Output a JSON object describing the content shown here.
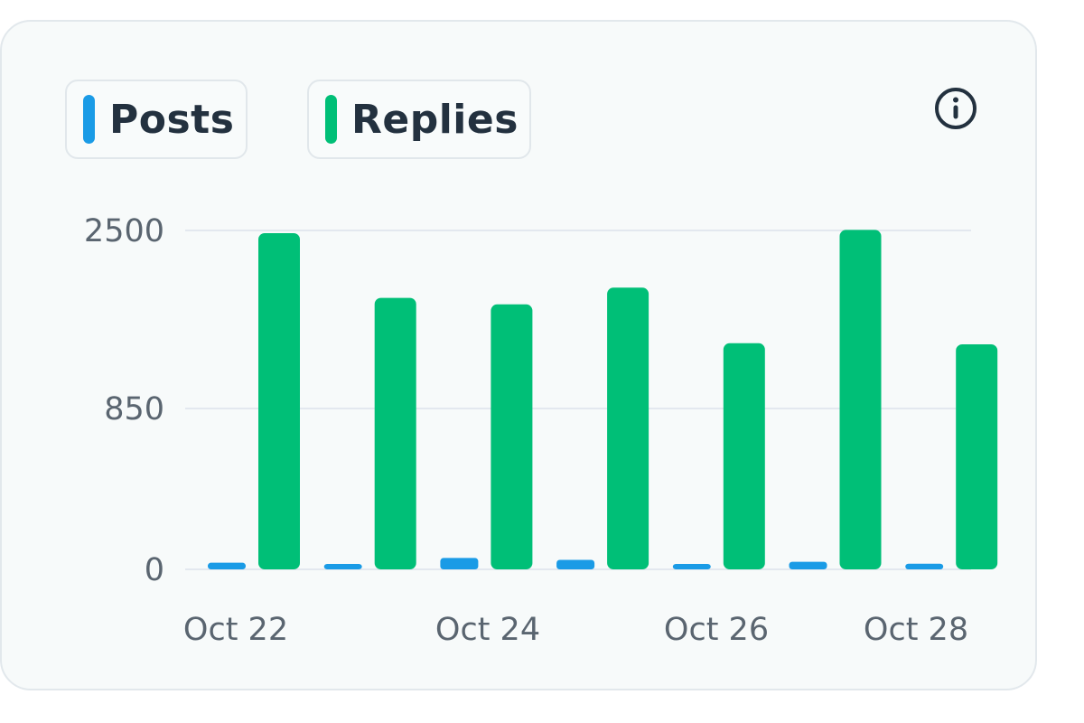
{
  "legend": {
    "posts_label": "Posts",
    "replies_label": "Replies"
  },
  "info_icon": "info-icon",
  "colors": {
    "posts": "#1a9be6",
    "replies": "#00bf77",
    "grid": "#e3e8ef",
    "card_bg": "#f7fafa"
  },
  "chart_data": {
    "type": "bar",
    "categories": [
      "Oct 22",
      "Oct 23",
      "Oct 24",
      "Oct 25",
      "Oct 26",
      "Oct 27",
      "Oct 28"
    ],
    "x_tick_labels": [
      "Oct 22",
      "Oct 24",
      "Oct 26",
      "Oct 28"
    ],
    "y_ticks": [
      0,
      850,
      2500
    ],
    "y_tick_labels": [
      "0",
      "850",
      "2500"
    ],
    "ylim": [
      0,
      2500
    ],
    "grid": true,
    "legend_position": "top-left",
    "series": [
      {
        "name": "Posts",
        "values": [
          35,
          25,
          60,
          50,
          25,
          40,
          30
        ]
      },
      {
        "name": "Replies",
        "values": [
          2475,
          1875,
          1815,
          1970,
          1455,
          2505,
          1445
        ]
      }
    ]
  }
}
